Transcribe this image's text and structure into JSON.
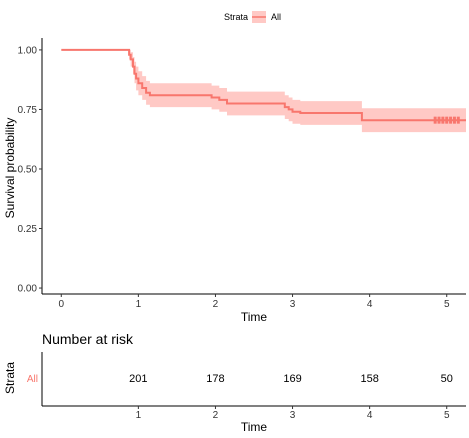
{
  "chart_data": [
    {
      "type": "line",
      "subtype": "kaplan-meier",
      "xlabel": "Time",
      "ylabel": "Survival probability",
      "xlim": [
        -0.25,
        5.25
      ],
      "ylim": [
        -0.025,
        1.05
      ],
      "x_ticks": [
        "0",
        "1",
        "2",
        "3",
        "4",
        "5"
      ],
      "y_ticks": [
        "0.00",
        "0.25",
        "0.50",
        "0.75",
        "1.00"
      ],
      "legend": {
        "title": "Strata",
        "position": "top",
        "entries": [
          "All"
        ]
      },
      "grid": false,
      "colors": {
        "curve": "#F8766D",
        "band": "#FFC9C5"
      },
      "series": [
        {
          "name": "All",
          "x": [
            0,
            0.85,
            0.88,
            0.9,
            0.93,
            0.95,
            0.97,
            1.0,
            1.05,
            1.1,
            1.15,
            1.25,
            1.9,
            1.95,
            2.05,
            2.15,
            2.7,
            2.9,
            2.95,
            3.0,
            3.1,
            3.9,
            5.25
          ],
          "y": [
            1.0,
            1.0,
            0.98,
            0.96,
            0.93,
            0.9,
            0.88,
            0.86,
            0.84,
            0.82,
            0.81,
            0.81,
            0.81,
            0.8,
            0.79,
            0.775,
            0.775,
            0.76,
            0.75,
            0.74,
            0.735,
            0.705,
            0.705
          ],
          "lower": [
            1.0,
            1.0,
            0.96,
            0.93,
            0.9,
            0.86,
            0.83,
            0.81,
            0.79,
            0.77,
            0.76,
            0.76,
            0.76,
            0.75,
            0.74,
            0.725,
            0.725,
            0.71,
            0.7,
            0.69,
            0.685,
            0.655,
            0.65
          ],
          "upper": [
            1.0,
            1.0,
            1.0,
            0.99,
            0.97,
            0.95,
            0.93,
            0.91,
            0.89,
            0.87,
            0.86,
            0.86,
            0.86,
            0.85,
            0.84,
            0.825,
            0.825,
            0.81,
            0.8,
            0.79,
            0.785,
            0.755,
            0.76
          ],
          "censor_x": [
            4.85,
            4.9,
            4.95,
            5.0,
            5.05,
            5.1,
            5.15
          ]
        }
      ]
    },
    {
      "type": "table",
      "title": "Number at risk",
      "xlabel": "Time",
      "ylabel": "Strata",
      "xlim": [
        -0.25,
        5.25
      ],
      "x_ticks": [
        "1",
        "2",
        "3",
        "4",
        "5"
      ],
      "row_label": "All",
      "times": [
        1,
        2,
        3,
        4,
        5
      ],
      "values": [
        "201",
        "178",
        "169",
        "158",
        "50"
      ]
    }
  ]
}
